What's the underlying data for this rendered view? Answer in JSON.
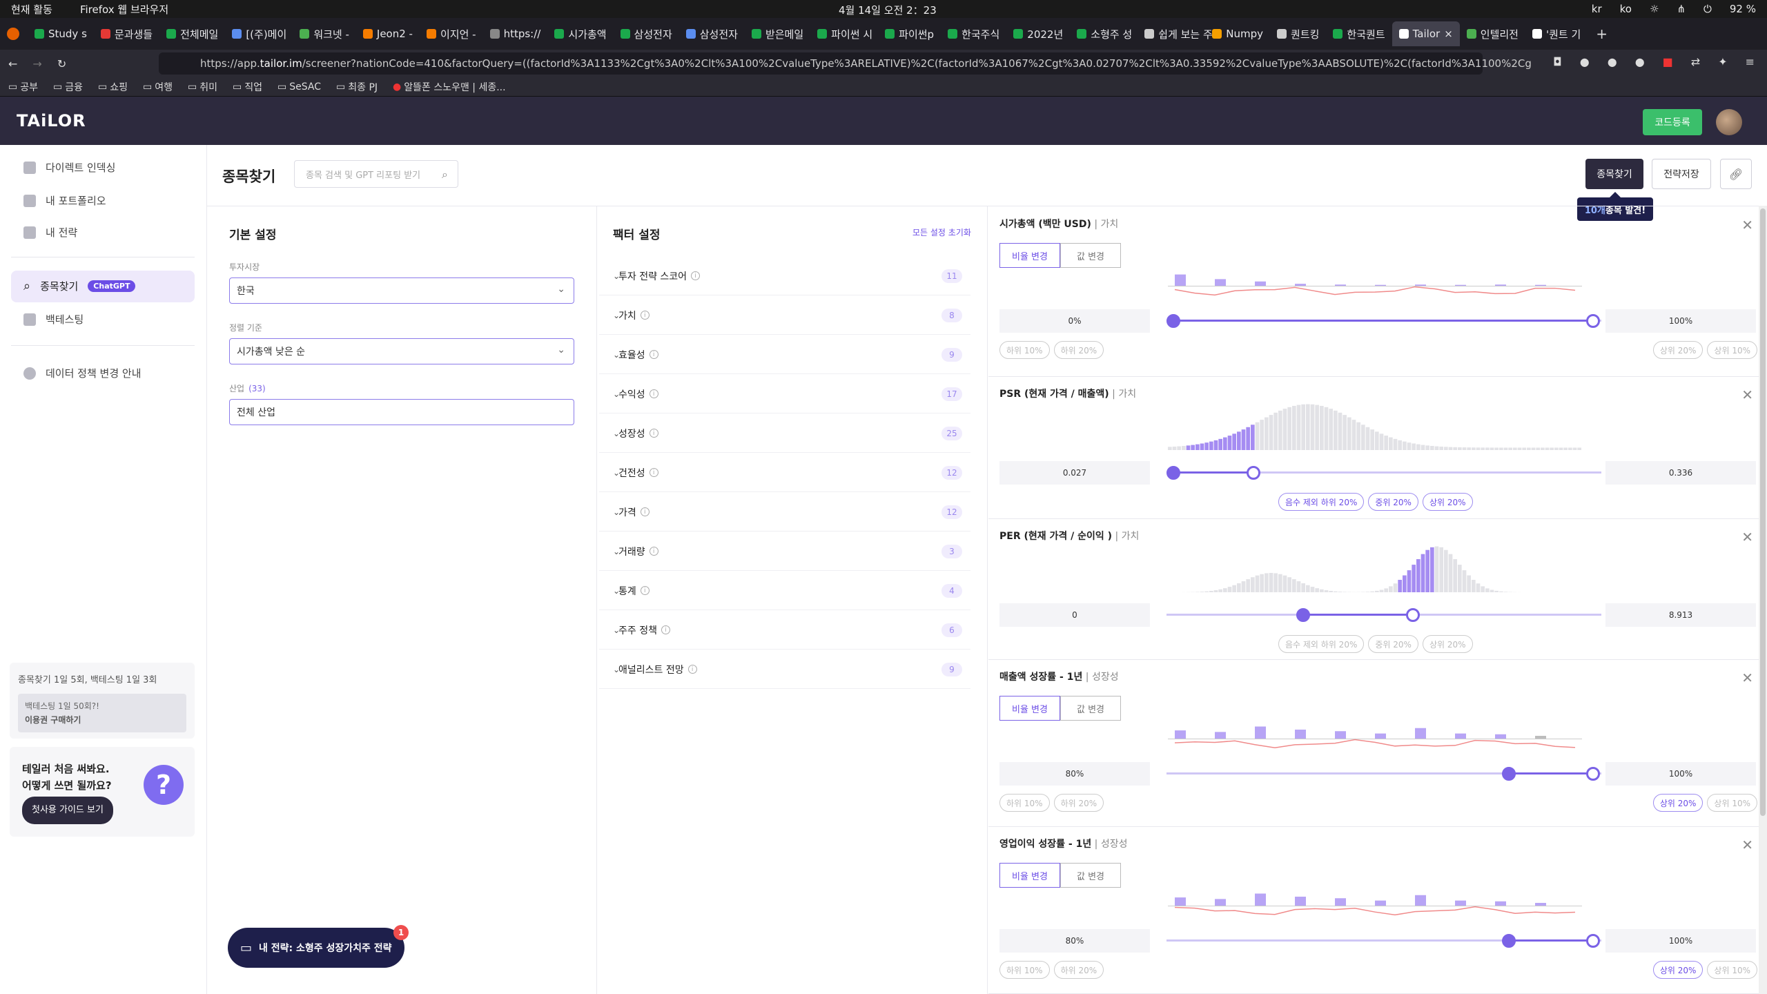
{
  "os": {
    "activities": "현재 활동",
    "app": "Firefox 웹 브라우저",
    "clock": "4월 14일 오전  2：23",
    "ime": "kr",
    "lang": "ko",
    "battery": "92 %"
  },
  "browser": {
    "tabs": [
      "Study s",
      "문과생들",
      "전체메일",
      "[(주)메이",
      "워크넷 -",
      "Jeon2 -",
      "이지언 -",
      "https://",
      "시가총액",
      "삼성전자",
      "삼성전자",
      "받은메일",
      "파이썬 시",
      "파이썬p",
      "한국주식",
      "2022년",
      "소형주 성",
      "쉽게 보는 주",
      "Numpy",
      "퀀트킹",
      "한국퀀트",
      "Tailor",
      "인텔리전",
      "'퀀트 기"
    ],
    "tab_colors": [
      "#1ba94c",
      "#e53935",
      "#1ba94c",
      "#5b8def",
      "#4caf50",
      "#f57c00",
      "#f57c00",
      "#888",
      "#1ba94c",
      "#1ba94c",
      "#5b8def",
      "#1ba94c",
      "#1ba94c",
      "#1ba94c",
      "#1ba94c",
      "#1ba94c",
      "#1ba94c",
      "#ccc",
      "#f59f00",
      "#ccc",
      "#1ba94c",
      "#fff",
      "#4caf50",
      "#fff"
    ],
    "url_prefix": "https://app.",
    "url_host": "tailor.im",
    "url_rest": "/screener?nationCode=410&factorQuery=((factorId%3A1133%2Cgt%3A0%2Clt%3A100%2CvalueType%3ARELATIVE)%2C(factorId%3A1067%2Cgt%3A0.02707%2Clt%3A0.33592%2CvalueType%3AABSOLUTE)%2C(factorId%3A1100%2Cg",
    "bookmarks": [
      "공부",
      "금융",
      "쇼핑",
      "여행",
      "취미",
      "직업",
      "SeSAC",
      "최종 PJ",
      "알뜰폰 스노우맨 | 세종..."
    ]
  },
  "app": {
    "logo": "TAiLOR",
    "code_button": "코드등록",
    "sidebar": {
      "items": [
        "다이렉트 인덱싱",
        "내 포트폴리오",
        "내 전략",
        "종목찾기",
        "백테스팅",
        "데이터 정책 변경 안내"
      ],
      "gpt_badge": "ChatGPT",
      "quota": "종목찾기 1일 5회, 백테스팅 1일 3회",
      "upsell_line1": "백테스팅 1일 50회?!",
      "upsell_line2": "이용권 구매하기",
      "guide_line1": "테일러 처음 써봐요.",
      "guide_line2": "어떻게 쓰면 될까요?",
      "guide_button": "첫사용 가이드 보기",
      "help_glyph": "?"
    },
    "page_title": "종목찾기",
    "search_placeholder": "종목 검색 및 GPT 리포팅 받기",
    "find_button": "종목찾기",
    "save_button": "전략저장",
    "tooltip_count": "10개",
    "tooltip_rest": " 종목 발견!",
    "basic": {
      "title": "기본 설정",
      "market_label": "투자시장",
      "market_value": "한국",
      "sort_label": "정렬 기준",
      "sort_value": "시가총액 낮은 순",
      "industry_label": "산업",
      "industry_count": "(33)",
      "industry_value": "전체 산업"
    },
    "factor": {
      "title": "팩터 설정",
      "reset": "모든 설정 초기화",
      "rows": [
        {
          "label": "투자 전략 스코어",
          "count": "11"
        },
        {
          "label": "가치",
          "count": "8"
        },
        {
          "label": "효율성",
          "count": "9"
        },
        {
          "label": "수익성",
          "count": "17"
        },
        {
          "label": "성장성",
          "count": "25"
        },
        {
          "label": "건전성",
          "count": "12"
        },
        {
          "label": "가격",
          "count": "12"
        },
        {
          "label": "거래량",
          "count": "3"
        },
        {
          "label": "통계",
          "count": "4"
        },
        {
          "label": "주주 정책",
          "count": "6"
        },
        {
          "label": "애널리스트 전망",
          "count": "9"
        }
      ]
    },
    "cards": [
      {
        "title": "시가총액 (백만 USD)",
        "category": "가치",
        "toggle": [
          "비율 변경",
          "값 변경"
        ],
        "min": "0%",
        "max": "100%",
        "low_chips": [
          "하위 10%",
          "하위 20%"
        ],
        "high_chips": [
          "상위 20%",
          "상위 10%"
        ],
        "range": [
          0,
          1
        ]
      },
      {
        "title": "PSR (현재 가격 / 매출액)",
        "category": "가치",
        "min": "0.027",
        "max": "0.336",
        "mid_chips": [
          "음수 제외 하위 20%",
          "중위 20%",
          "상위 20%"
        ],
        "range": [
          0,
          0.19
        ]
      },
      {
        "title": "PER (현재 가격 / 순이익 )",
        "category": "가치",
        "min": "0",
        "max": "8.913",
        "mid_chips": [
          "음수 제외 하위 20%",
          "중위 20%",
          "상위 20%"
        ],
        "range": [
          0.31,
          0.57
        ]
      },
      {
        "title": "매출액 성장률 - 1년",
        "category": "성장성",
        "toggle": [
          "비율 변경",
          "값 변경"
        ],
        "min": "80%",
        "max": "100%",
        "low_chips": [
          "하위 10%",
          "하위 20%"
        ],
        "high_chips": [
          "상위 20%",
          "상위 10%"
        ],
        "range": [
          0.8,
          1
        ]
      },
      {
        "title": "영업이익 성장률 - 1년",
        "category": "성장성",
        "toggle": [
          "비율 변경",
          "값 변경"
        ],
        "min": "80%",
        "max": "100%",
        "low_chips": [
          "하위 10%",
          "하위 20%"
        ],
        "high_chips": [
          "상위 20%",
          "상위 10%"
        ],
        "range": [
          0.8,
          1
        ]
      }
    ],
    "strategy_button": "내 전략: 소형주 성장가치주 전략",
    "strategy_badge": "1"
  },
  "colors": {
    "accent": "#7a62e6",
    "header": "#2d2a3e",
    "green": "#3bbf6b",
    "tooltip": "#1e1f4b"
  }
}
